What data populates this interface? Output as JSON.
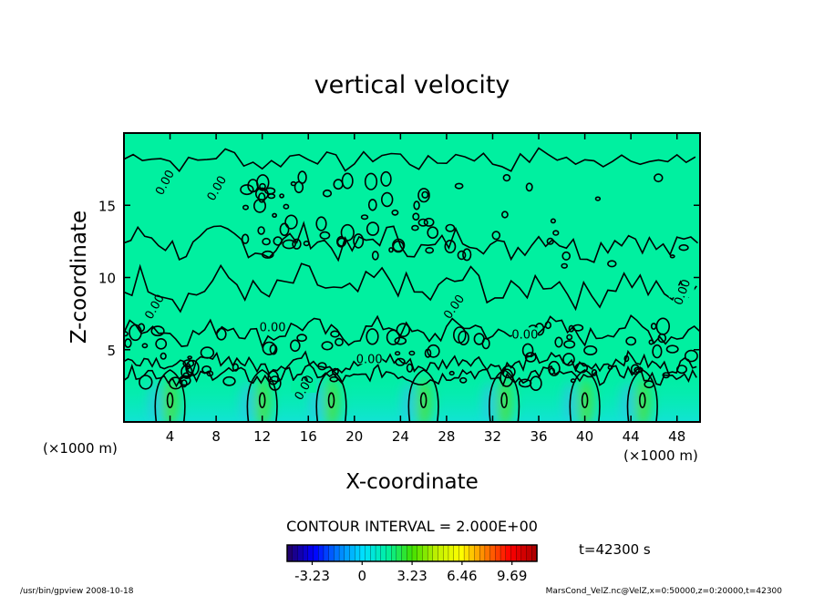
{
  "chart_data": {
    "type": "heatmap",
    "title": "vertical velocity",
    "xlabel": "X-coordinate",
    "ylabel": "Z-coordinate",
    "x_unit": "(×1000 m)",
    "y_unit": "(×1000 m)",
    "xlim": [
      0,
      50
    ],
    "ylim": [
      0,
      20
    ],
    "x_ticks": [
      4,
      8,
      12,
      16,
      20,
      24,
      28,
      32,
      36,
      40,
      44,
      48
    ],
    "y_ticks": [
      5,
      10,
      15
    ],
    "contour_label": "0.00",
    "contour_interval_text": "CONTOUR INTERVAL = 2.000E+00",
    "time_text": "t=42300 s",
    "colorbar": {
      "range": [
        -4.85,
        11.3
      ],
      "tick_values": [
        -3.23,
        0,
        3.23,
        6.46,
        9.69
      ],
      "tick_labels": [
        "-3.23",
        "0",
        "3.23",
        "6.46",
        "9.69"
      ]
    },
    "updraft_cores_x": [
      4,
      12,
      18,
      26,
      33,
      40,
      45
    ]
  },
  "footer": {
    "left": "/usr/bin/gpview  2008-10-18",
    "right": "MarsCond_VelZ.nc@VelZ,x=0:50000,z=0:20000,t=42300"
  },
  "colors": {
    "background_field": "#00f0a0",
    "contour": "#000000",
    "colorbar_stops": [
      "#200070",
      "#0000ff",
      "#0080ff",
      "#00e0ff",
      "#00f0a0",
      "#40e000",
      "#c0f000",
      "#ffff00",
      "#ff8000",
      "#ff0000",
      "#b00000"
    ]
  }
}
